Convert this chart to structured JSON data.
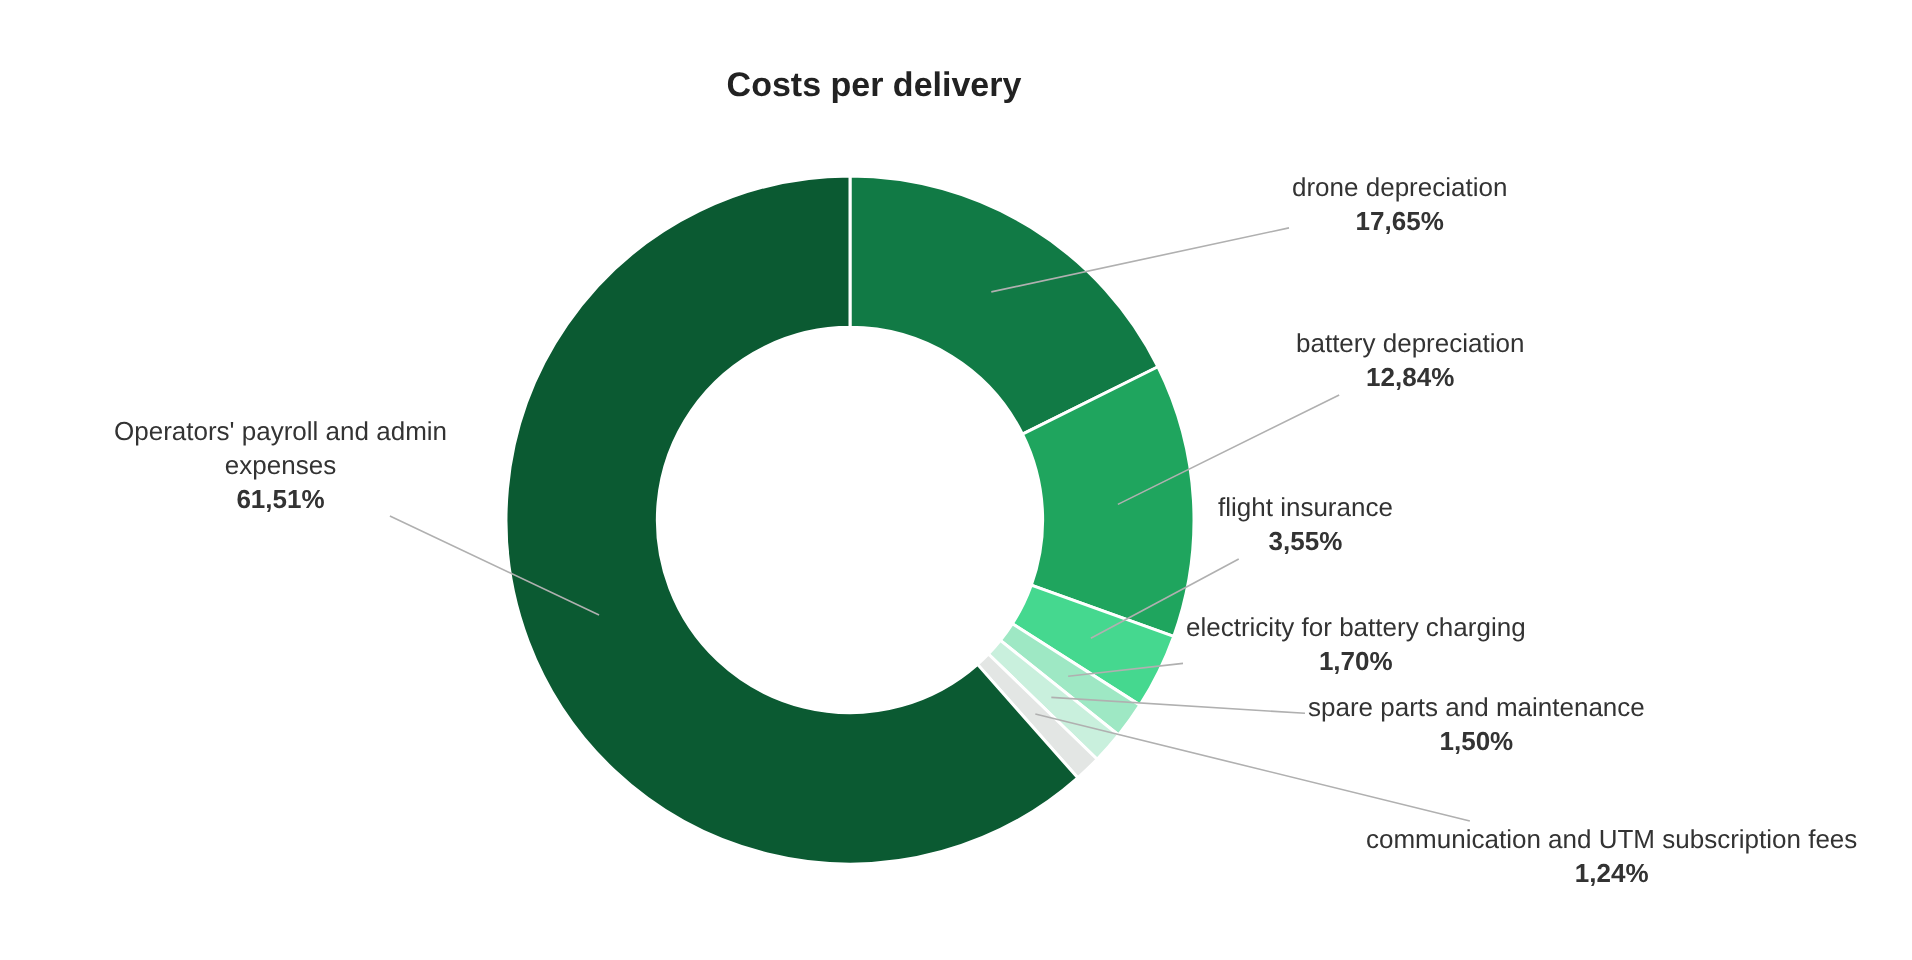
{
  "chart_data": {
    "type": "donut",
    "title": "Costs per delivery",
    "categories": [
      "drone depreciation",
      "battery depreciation",
      "flight insurance",
      "electricity for battery charging",
      "spare parts and maintenance",
      "communication and UTM subscription fees",
      "Operators' payroll and admin expenses"
    ],
    "values": [
      17.65,
      12.84,
      3.55,
      1.7,
      1.5,
      1.24,
      61.51
    ],
    "value_labels": [
      "17,65%",
      "12,84%",
      "3,55%",
      "1,70%",
      "1,50%",
      "1,24%",
      "61,51%"
    ],
    "colors": [
      "#117a45",
      "#1fa55e",
      "#45d88f",
      "#9ee8c4",
      "#c9f0dd",
      "#e3e6e4",
      "#0b5a32"
    ],
    "legend": false
  }
}
